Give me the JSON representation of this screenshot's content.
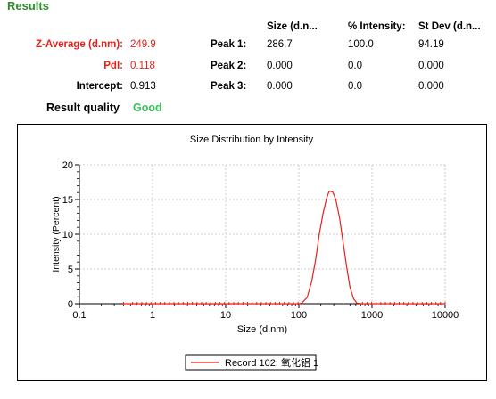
{
  "results": {
    "title": "Results",
    "headers": {
      "size": "Size (d.n...",
      "intensity": "% Intensity:",
      "stdev": "St Dev (d.n..."
    },
    "z_average": {
      "label": "Z-Average (d.nm):",
      "value": "249.9"
    },
    "pdi": {
      "label": "PdI:",
      "value": "0.118"
    },
    "intercept": {
      "label": "Intercept:",
      "value": "0.913"
    },
    "quality": {
      "label": "Result quality",
      "value": "Good"
    },
    "peaks": [
      {
        "label": "Peak 1:",
        "size": "286.7",
        "intensity": "100.0",
        "stdev": "94.19"
      },
      {
        "label": "Peak 2:",
        "size": "0.000",
        "intensity": "0.0",
        "stdev": "0.000"
      },
      {
        "label": "Peak 3:",
        "size": "0.000",
        "intensity": "0.0",
        "stdev": "0.000"
      }
    ]
  },
  "colors": {
    "title": "#2e8b2e",
    "red": "#e8201a",
    "good": "#35c35a",
    "series": "#e8201a",
    "grid": "#bfbfbf"
  },
  "chart_data": {
    "type": "line",
    "title": "Size Distribution by Intensity",
    "xlabel": "Size (d.nm)",
    "ylabel": "Intensity (Percent)",
    "x_scale": "log",
    "xlim": [
      0.1,
      10000
    ],
    "ylim": [
      0,
      20
    ],
    "x_ticks": [
      0.1,
      1,
      10,
      100,
      1000,
      10000
    ],
    "x_tick_labels": [
      "0.1",
      "1",
      "10",
      "100",
      "1000",
      "10000"
    ],
    "y_ticks": [
      0,
      5,
      10,
      15,
      20
    ],
    "y_tick_labels": [
      "0",
      "5",
      "10",
      "15",
      "20"
    ],
    "grid": true,
    "legend_position": "bottom-center",
    "series": [
      {
        "name": "Record 102: 氧化铝 1",
        "x": [
          0.4,
          100,
          110,
          130,
          150,
          170,
          190,
          215,
          240,
          260,
          290,
          320,
          360,
          400,
          450,
          500,
          560,
          620,
          700,
          1000,
          10000
        ],
        "y": [
          0,
          0,
          0.1,
          0.9,
          3.2,
          6.4,
          10.0,
          13.1,
          15.2,
          16.2,
          16.1,
          15.0,
          12.4,
          9.0,
          5.3,
          2.4,
          0.7,
          0.1,
          0,
          0,
          0
        ]
      }
    ]
  }
}
